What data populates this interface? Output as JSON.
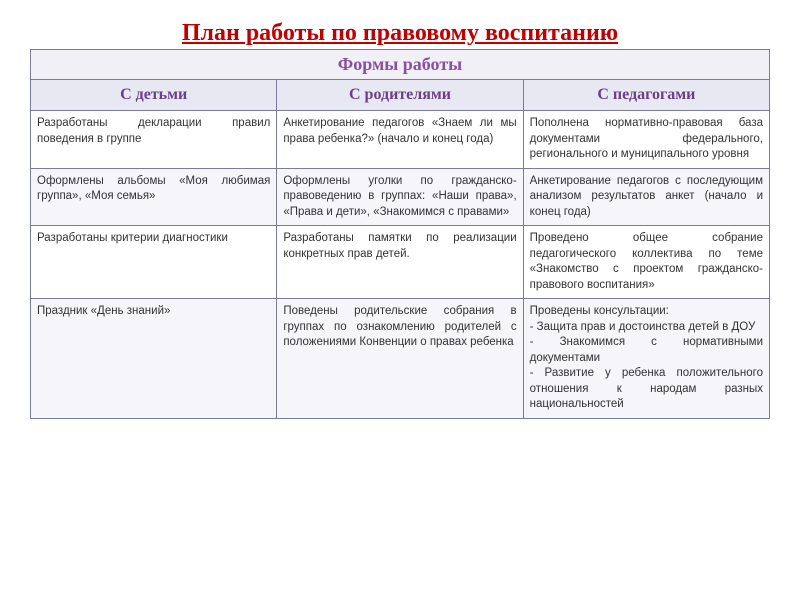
{
  "title": "План работы по правовому воспитанию",
  "table": {
    "topHeader": "Формы работы",
    "columns": [
      "С детьми",
      "С родителями",
      "С педагогами"
    ],
    "rows": [
      {
        "c1": "Разработаны декларации правил поведения в группе",
        "c2": "Анкетирование педагогов «Знаем ли мы права ребенка?» (начало и конец года)",
        "c3": "Пополнена нормативно-правовая база документами федерального, регионального и муниципального уровня"
      },
      {
        "c1": "Оформлены альбомы «Моя любимая группа», «Моя семья»",
        "c2": "Оформлены уголки по гражданско-правоведению в группах: «Наши права», «Права и дети», «Знакомимся с правами»",
        "c3": "Анкетирование педагогов с последующим анализом результатов анкет (начало и конец года)"
      },
      {
        "c1": "Разработаны критерии диагностики",
        "c2": "Разработаны памятки по реализации конкретных прав детей.",
        "c3": "Проведено общее собрание педагогического коллектива по теме «Знакомство с проектом гражданско-правового воспитания»"
      },
      {
        "c1": "Праздник «День знаний»",
        "c2": "Поведены родительские собрания в группах по ознакомлению родителей с положениями Конвенции о правах ребенка",
        "c3": "Проведены консультации:\n- Защита прав и достоинства детей в ДОУ\n- Знакомимся с нормативными документами\n- Развитие у ребенка положительного отношения к народам разных национальностей"
      }
    ]
  },
  "colors": {
    "title": "#c00000",
    "headerText": "#8a4fa0",
    "border": "#7a7a9a",
    "headerBg": "#f0f0f6",
    "subHeaderBg": "#e8e8f2",
    "altRowBg": "#f5f5fa",
    "cellText": "#333333"
  }
}
